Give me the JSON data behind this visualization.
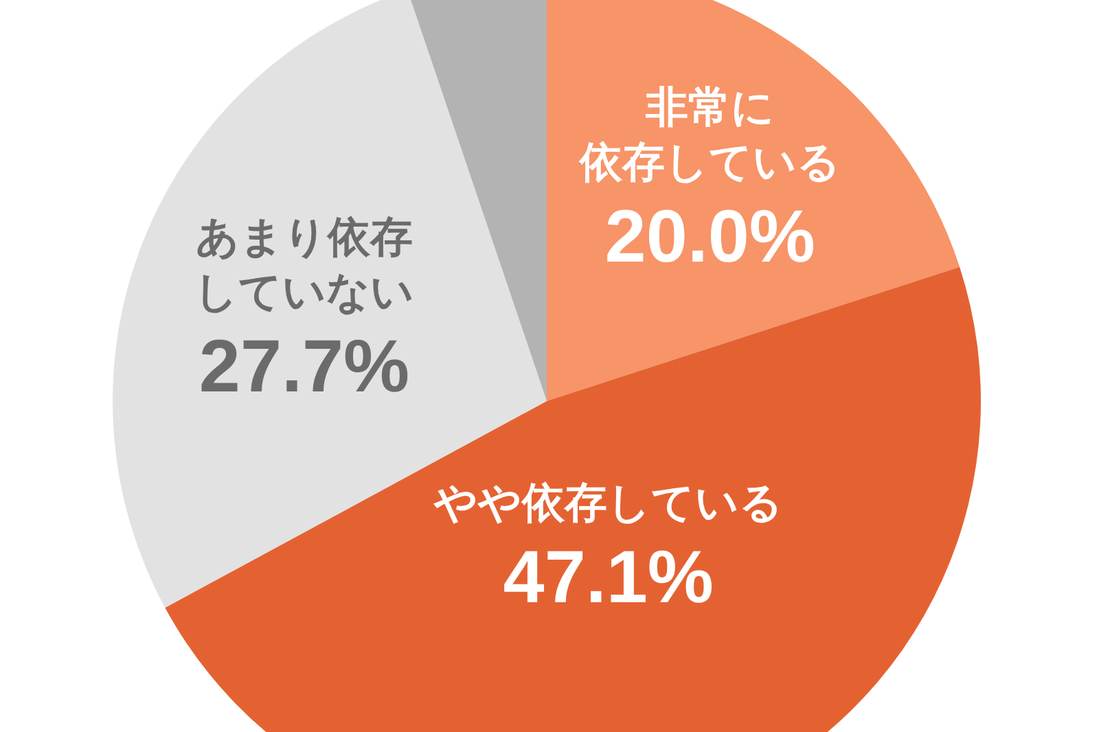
{
  "chart_data": {
    "type": "pie",
    "categories": [
      "非常に依存している",
      "やや依存している",
      "あまり依存していない",
      null
    ],
    "values": [
      20.0,
      47.1,
      27.7,
      5.2
    ],
    "value_labels": [
      "20.0%",
      "47.1%",
      "27.7%",
      null
    ],
    "colors": [
      "#f79468",
      "#e46232",
      "#e2e2e2",
      "#b3b3b3"
    ]
  }
}
